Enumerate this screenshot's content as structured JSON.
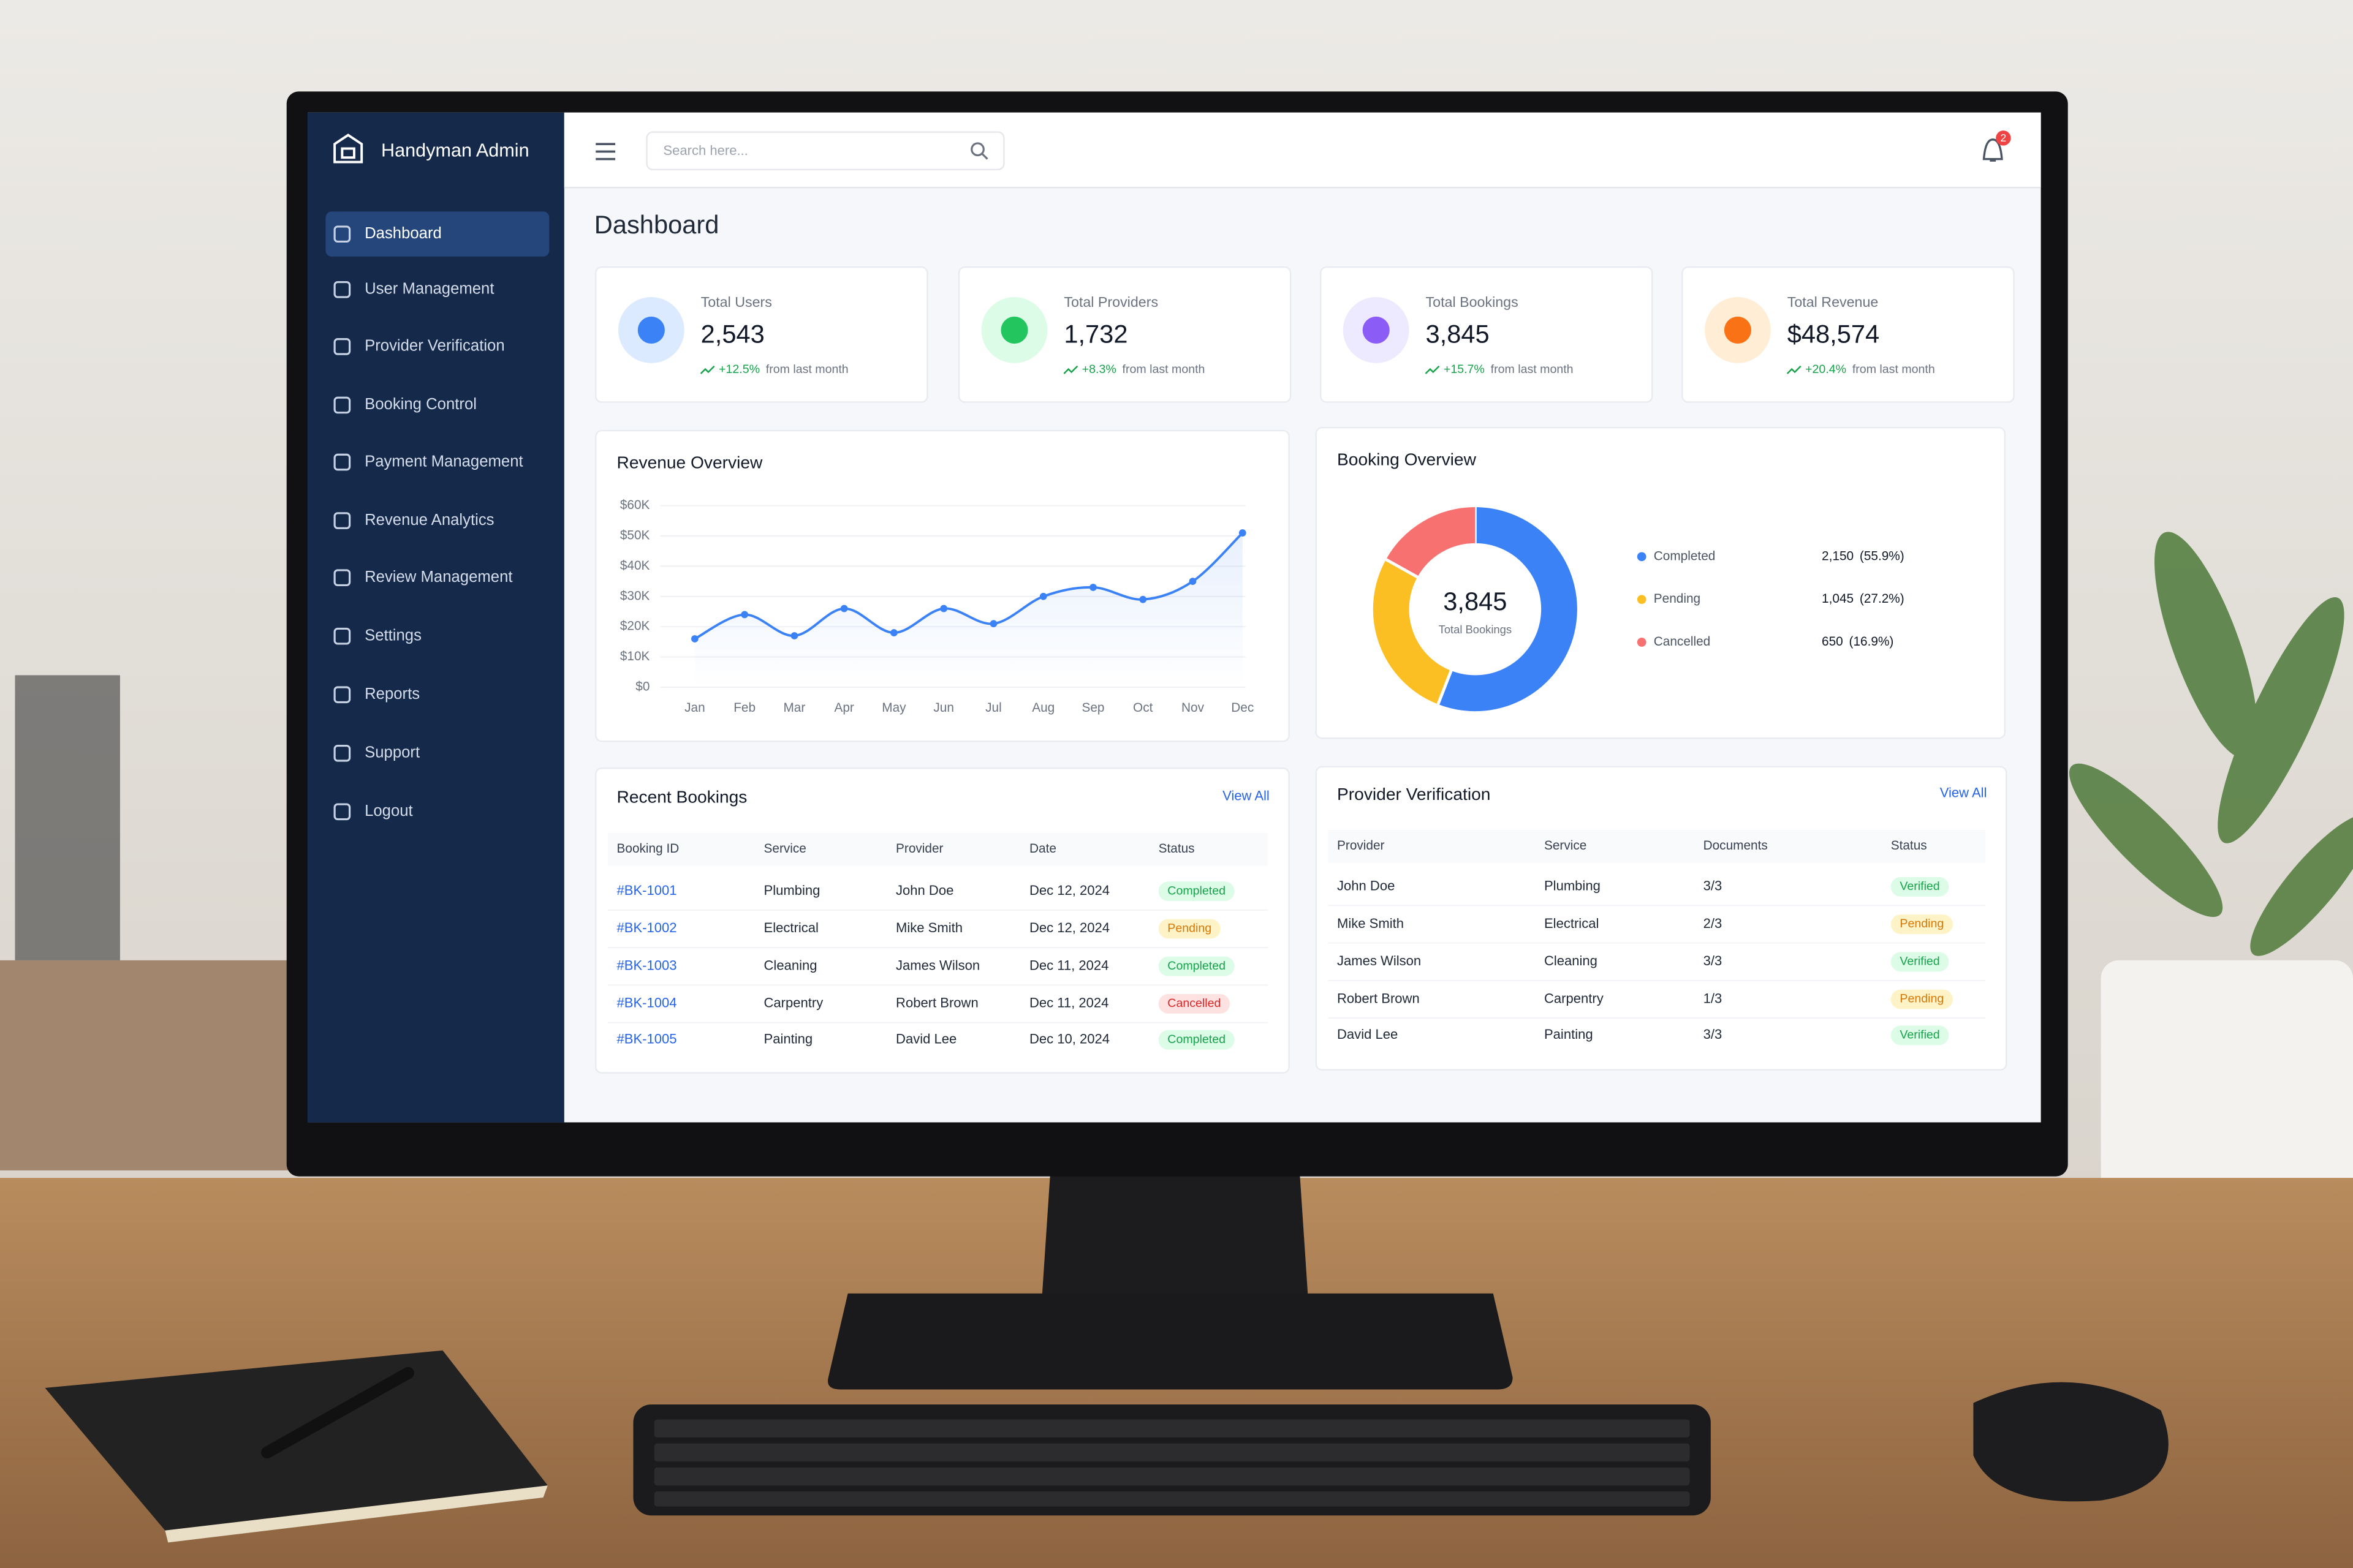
{
  "sidebar": {
    "brand": "Handyman Admin",
    "menu": [
      "Dashboard",
      "User Management",
      "Provider Verification",
      "Booking Control",
      "Payment Management",
      "Revenue Analytics",
      "Review Management",
      "Settings",
      "Reports",
      "Support",
      "Logout"
    ]
  },
  "topbar": {
    "search_placeholder": "Search here...",
    "notification_count": "2"
  },
  "page_title": "Dashboard",
  "stats": [
    {
      "title": "Total Users",
      "value": "2,543",
      "change": "+12.5%",
      "note": "from last month"
    },
    {
      "title": "Total Providers",
      "value": "1,732",
      "change": "+8.3%",
      "note": "from last month"
    },
    {
      "title": "Total Bookings",
      "value": "3,845",
      "change": "+15.7%",
      "note": "from last month"
    },
    {
      "title": "Total Revenue",
      "value": "$48,574",
      "change": "+20.4%",
      "note": "from last month"
    }
  ],
  "chart_data": [
    {
      "type": "line",
      "title": "Revenue Overview",
      "categories": [
        "Jan",
        "Feb",
        "Mar",
        "Apr",
        "May",
        "Jun",
        "Jul",
        "Aug",
        "Sep",
        "Oct",
        "Nov",
        "Dec"
      ],
      "values": [
        16000,
        24000,
        17000,
        26000,
        18000,
        26000,
        21000,
        30000,
        33000,
        29000,
        35000,
        51000
      ],
      "color": "#3b82f6",
      "area": true,
      "ylim": [
        0,
        60000
      ],
      "yticks": [
        {
          "value": 0,
          "label": "$0"
        },
        {
          "value": 10000,
          "label": "$10K"
        },
        {
          "value": 20000,
          "label": "$20K"
        },
        {
          "value": 30000,
          "label": "$30K"
        },
        {
          "value": 40000,
          "label": "$40K"
        },
        {
          "value": 50000,
          "label": "$50K"
        },
        {
          "value": 60000,
          "label": "$60K"
        }
      ],
      "grid": true
    },
    {
      "type": "donut",
      "title": "Booking Overview",
      "categories": [
        "Completed",
        "Pending",
        "Cancelled"
      ],
      "values": [
        2150,
        1045,
        650
      ],
      "value_labels": [
        "2,150",
        "1,045",
        "650"
      ],
      "percent_labels": [
        "(55.9%)",
        "(27.2%)",
        "(16.9%)"
      ],
      "colors": [
        "#3b82f6",
        "#fbbf24",
        "#f87171"
      ],
      "center_value": "3,845",
      "center_label": "Total Bookings"
    }
  ],
  "recent_bookings": {
    "title": "Recent Bookings",
    "action": "View All",
    "columns": [
      "Booking ID",
      "Service",
      "Provider",
      "Date",
      "Status"
    ],
    "rows": [
      [
        "#BK-1001",
        "Plumbing",
        "John Doe",
        "Dec 12, 2024",
        "Completed"
      ],
      [
        "#BK-1002",
        "Electrical",
        "Mike Smith",
        "Dec 12, 2024",
        "Pending"
      ],
      [
        "#BK-1003",
        "Cleaning",
        "James Wilson",
        "Dec 11, 2024",
        "Completed"
      ],
      [
        "#BK-1004",
        "Carpentry",
        "Robert Brown",
        "Dec 11, 2024",
        "Cancelled"
      ],
      [
        "#BK-1005",
        "Painting",
        "David Lee",
        "Dec 10, 2024",
        "Completed"
      ]
    ]
  },
  "provider_verification": {
    "title": "Provider Verification",
    "action": "View All",
    "columns": [
      "Provider",
      "Service",
      "Documents",
      "Status"
    ],
    "rows": [
      [
        "John Doe",
        "Plumbing",
        "3/3",
        "Verified"
      ],
      [
        "Mike Smith",
        "Electrical",
        "2/3",
        "Pending"
      ],
      [
        "James Wilson",
        "Cleaning",
        "3/3",
        "Verified"
      ],
      [
        "Robert Brown",
        "Carpentry",
        "1/3",
        "Pending"
      ],
      [
        "David Lee",
        "Painting",
        "3/3",
        "Verified"
      ]
    ]
  }
}
